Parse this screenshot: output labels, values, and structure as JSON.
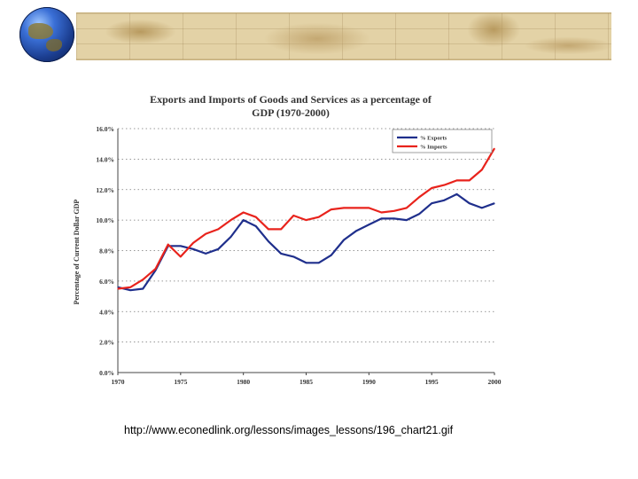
{
  "caption": "http://www.econedlink.org/lessons/images_lessons/196_chart21.gif",
  "chart_data": {
    "type": "line",
    "title_line1": "Exports and Imports of Goods and Services as a percentage of",
    "title_line2": "GDP (1970-2000)",
    "ylabel": "Percentage of Current Dollar GDP",
    "xlabel": "",
    "xlim": [
      1970,
      2000
    ],
    "ylim": [
      0,
      16
    ],
    "x_ticks": [
      "1970",
      "1975",
      "1980",
      "1985",
      "1990",
      "1995",
      "2000"
    ],
    "y_ticks": [
      "0.0%",
      "2.0%",
      "4.0%",
      "6.0%",
      "8.0%",
      "10.0%",
      "12.0%",
      "14.0%",
      "16.0%"
    ],
    "legend_position": "top-right",
    "series": [
      {
        "name": "% Exports",
        "color": "#1f2f8c",
        "x": [
          1970,
          1971,
          1972,
          1973,
          1974,
          1975,
          1976,
          1977,
          1978,
          1979,
          1980,
          1981,
          1982,
          1983,
          1984,
          1985,
          1986,
          1987,
          1988,
          1989,
          1990,
          1991,
          1992,
          1993,
          1994,
          1995,
          1996,
          1997,
          1998,
          1999,
          2000
        ],
        "values": [
          5.6,
          5.4,
          5.5,
          6.7,
          8.3,
          8.3,
          8.1,
          7.8,
          8.1,
          8.9,
          10.0,
          9.6,
          8.6,
          7.8,
          7.6,
          7.2,
          7.2,
          7.7,
          8.7,
          9.3,
          9.7,
          10.1,
          10.1,
          10.0,
          10.4,
          11.1,
          11.3,
          11.7,
          11.1,
          10.8,
          11.1
        ]
      },
      {
        "name": "% Imports",
        "color": "#e8231c",
        "x": [
          1970,
          1971,
          1972,
          1973,
          1974,
          1975,
          1976,
          1977,
          1978,
          1979,
          1980,
          1981,
          1982,
          1983,
          1984,
          1985,
          1986,
          1987,
          1988,
          1989,
          1990,
          1991,
          1992,
          1993,
          1994,
          1995,
          1996,
          1997,
          1998,
          1999,
          2000
        ],
        "values": [
          5.5,
          5.6,
          6.1,
          6.8,
          8.4,
          7.6,
          8.5,
          9.1,
          9.4,
          10.0,
          10.5,
          10.2,
          9.4,
          9.4,
          10.3,
          10.0,
          10.2,
          10.7,
          10.8,
          10.8,
          10.8,
          10.5,
          10.6,
          10.8,
          11.5,
          12.1,
          12.3,
          12.6,
          12.6,
          13.3,
          14.7
        ]
      }
    ]
  }
}
